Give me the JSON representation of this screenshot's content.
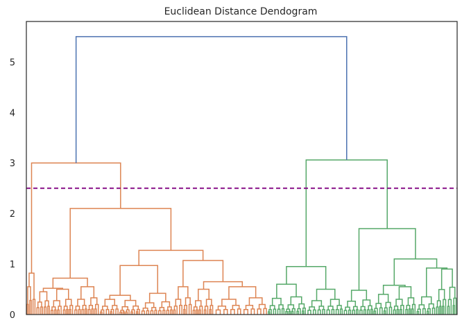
{
  "chart_data": {
    "type": "dendrogram",
    "title": "Euclidean Distance Dendogram",
    "xlabel": "",
    "ylabel": "",
    "ylim": [
      0,
      5.8
    ],
    "yticks": [
      0,
      1,
      2,
      3,
      4,
      5
    ],
    "grid": false,
    "threshold": {
      "value": 2.5,
      "color": "#800080",
      "style": "dashed"
    },
    "colors": {
      "root": "#4c72b0",
      "cluster_1": "#dd8452",
      "cluster_2": "#55a868",
      "axes": "#262626"
    },
    "major_merges": [
      {
        "cluster": "root",
        "height": 5.5,
        "joins": [
          "cluster_1",
          "cluster_2"
        ]
      },
      {
        "cluster": "cluster_1",
        "height": 3.0,
        "joins": [
          "outlier_leaves",
          "cluster_1_main"
        ]
      },
      {
        "cluster": "cluster_1",
        "height": 2.1,
        "joins": [
          "cluster_1_left",
          "cluster_1_right"
        ]
      },
      {
        "cluster": "cluster_1",
        "height": 1.27,
        "joins": [
          "cluster_1_right_a",
          "cluster_1_right_b"
        ]
      },
      {
        "cluster": "cluster_1",
        "height": 0.97,
        "joins": [
          "cluster_1_right_a1",
          "cluster_1_right_a2"
        ]
      },
      {
        "cluster": "cluster_1",
        "height": 1.07,
        "joins": [
          "cluster_1_right_b1",
          "cluster_1_right_b2"
        ]
      },
      {
        "cluster": "cluster_1",
        "height": 0.72,
        "joins": [
          "cluster_1_left_a",
          "cluster_1_left_b"
        ]
      },
      {
        "cluster": "cluster_1",
        "height": 0.82,
        "joins": [
          "outlier_leaf_a",
          "outlier_leaf_b"
        ]
      },
      {
        "cluster": "cluster_2",
        "height": 3.06,
        "joins": [
          "cluster_2_left",
          "cluster_2_right"
        ]
      },
      {
        "cluster": "cluster_2",
        "height": 0.95,
        "joins": [
          "cluster_2_left_a",
          "cluster_2_left_b"
        ]
      },
      {
        "cluster": "cluster_2",
        "height": 1.7,
        "joins": [
          "cluster_2_right_a",
          "cluster_2_right_b"
        ]
      },
      {
        "cluster": "cluster_2",
        "height": 1.1,
        "joins": [
          "cluster_2_right_b1",
          "cluster_2_right_b2"
        ]
      },
      {
        "cluster": "cluster_2",
        "height": 0.6,
        "joins": [
          "cluster_2_left_a1",
          "cluster_2_left_a2"
        ]
      }
    ]
  }
}
